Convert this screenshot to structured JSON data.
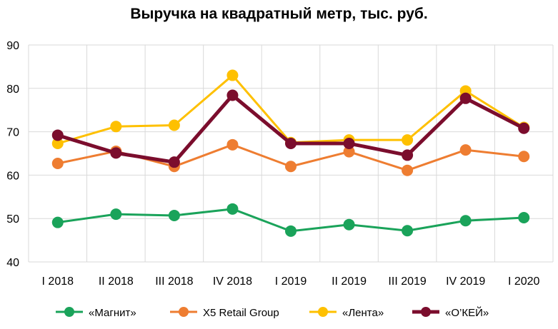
{
  "chart_data": {
    "type": "line",
    "title": "Выручка на квадратный метр, тыс. руб.",
    "xlabel": "",
    "ylabel": "",
    "categories": [
      "I 2018",
      "II 2018",
      "III 2018",
      "IV 2018",
      "I 2019",
      "II 2019",
      "III 2019",
      "IV 2019",
      "I 2020"
    ],
    "ylim": [
      40,
      90
    ],
    "yticks": [
      40,
      50,
      60,
      70,
      80,
      90
    ],
    "grid": true,
    "legend_position": "bottom",
    "series": [
      {
        "name": "«Магнит»",
        "color": "#1aa35a",
        "values": [
          49.1,
          51.0,
          50.7,
          52.2,
          47.1,
          48.6,
          47.2,
          49.5,
          50.2
        ]
      },
      {
        "name": "X5 Retail Group",
        "color": "#ee7d31",
        "values": [
          62.7,
          65.5,
          62.0,
          67.0,
          62.0,
          65.4,
          61.1,
          65.8,
          64.3
        ]
      },
      {
        "name": "«Лента»",
        "color": "#fec000",
        "values": [
          67.3,
          71.2,
          71.5,
          83.0,
          67.5,
          68.1,
          68.1,
          79.4,
          71.0
        ]
      },
      {
        "name": "«О’КЕЙ»",
        "color": "#7b0d2d",
        "values": [
          69.2,
          65.1,
          63.0,
          78.4,
          67.3,
          67.3,
          64.6,
          77.7,
          70.8
        ]
      }
    ]
  }
}
